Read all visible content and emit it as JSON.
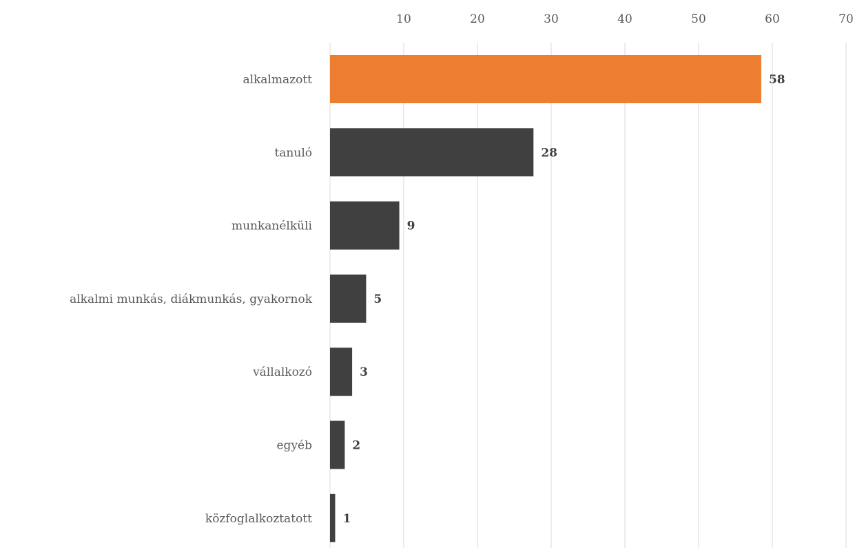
{
  "chart_data": {
    "type": "bar",
    "orientation": "horizontal",
    "categories": [
      "alkalmazott",
      "tanuló",
      "munkanélküli",
      "alkalmi munkás, diákmunkás, gyakornok",
      "vállalkozó",
      "egyéb",
      "közfoglalkoztatott"
    ],
    "values": [
      58.5,
      27.6,
      9.4,
      4.9,
      3.0,
      2.0,
      0.7
    ],
    "data_labels": [
      "58",
      "28",
      "9",
      "5",
      "3",
      "2",
      "1"
    ],
    "x_ticks": [
      "10",
      "20",
      "30",
      "40",
      "50",
      "60",
      "70"
    ],
    "xlim": [
      0,
      70
    ],
    "x_axis_position": "top",
    "grid": true,
    "legend": "none",
    "colors": {
      "highlight": "#ED7D31",
      "default": "#404040",
      "grid": "#D9D9D9"
    },
    "highlight_index": 0
  }
}
